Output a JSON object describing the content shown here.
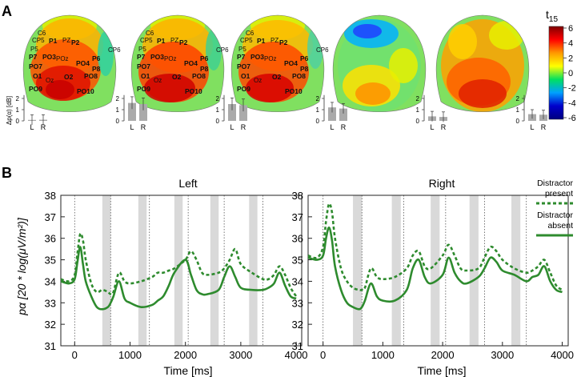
{
  "panel_a": {
    "label": "A",
    "colorbar": {
      "title": "t",
      "title_sub": "15",
      "ticks": [
        "6",
        "4",
        "2",
        "0",
        "-2",
        "-4",
        "-6"
      ],
      "values": [
        6,
        4,
        2,
        0,
        -2,
        -4,
        -6
      ],
      "colors": [
        "#7f0000",
        "#ff0000",
        "#ff9900",
        "#ffff00",
        "#00e060",
        "#00a0ff",
        "#0000cc",
        "#00007f"
      ]
    },
    "electrodes": [
      "C6",
      "CP5",
      "P1",
      "PZ",
      "P2",
      "CP6",
      "P5",
      "P7",
      "PO3",
      "POz",
      "PO4",
      "P6",
      "P8",
      "PO7",
      "O1",
      "Oz",
      "O2",
      "PO8",
      "PO9",
      "PO10"
    ],
    "bar_ylabel": "Δp(α) [dB]",
    "bar_yticks": [
      "2",
      "1",
      "0"
    ],
    "bar_categories": [
      "L",
      "R"
    ],
    "bar_values": [
      {
        "L": 0.0,
        "R": 0.1
      },
      {
        "L": 1.6,
        "R": 1.5
      },
      {
        "L": 1.5,
        "R": 1.4
      },
      {
        "L": 1.2,
        "R": 1.1
      },
      {
        "L": 0.4,
        "R": 0.35
      },
      {
        "L": 0.6,
        "R": 0.55
      }
    ],
    "bar_errors": [
      0.45,
      0.55,
      0.55,
      0.45,
      0.45,
      0.4
    ]
  },
  "panel_b": {
    "label": "B",
    "legend": {
      "present_label_1": "Distractor",
      "present_label_2": "present",
      "absent_label_1": "Distractor",
      "absent_label_2": "absent"
    }
  },
  "chart_data": [
    {
      "type": "line",
      "title": "Left",
      "xlabel": "Time [ms]",
      "ylabel": "pα [20 * log(μV/m²)]",
      "xlim": [
        -250,
        4100
      ],
      "ylim": [
        31,
        38
      ],
      "xticks": [
        0,
        1000,
        2000,
        3000,
        4000
      ],
      "yticks": [
        31,
        32,
        33,
        34,
        35,
        36,
        37,
        38
      ],
      "shaded_bands": [
        [
          500,
          650
        ],
        [
          1150,
          1300
        ],
        [
          1800,
          1950
        ],
        [
          2450,
          2600
        ],
        [
          3150,
          3300
        ]
      ],
      "dotted_verticals": [
        0,
        650,
        1350,
        2050,
        2700,
        3400
      ],
      "x": [
        -250,
        -100,
        0,
        50,
        100,
        150,
        200,
        300,
        400,
        500,
        600,
        650,
        700,
        800,
        900,
        1000,
        1200,
        1400,
        1500,
        1600,
        1700,
        1800,
        2000,
        2100,
        2200,
        2300,
        2400,
        2600,
        2700,
        2800,
        2900,
        3000,
        3200,
        3400,
        3500,
        3600,
        3700,
        3800,
        3900,
        4000
      ],
      "series": [
        {
          "name": "Distractor present",
          "values": [
            34.1,
            34.0,
            34.3,
            35.3,
            36.2,
            35.9,
            35.0,
            33.9,
            33.5,
            33.6,
            33.5,
            33.4,
            33.5,
            34.4,
            34.0,
            33.9,
            34.0,
            34.2,
            34.4,
            34.4,
            34.5,
            34.6,
            35.0,
            35.4,
            35.0,
            34.4,
            34.3,
            34.4,
            34.6,
            35.0,
            35.5,
            34.8,
            34.4,
            34.1,
            34.1,
            34.3,
            34.7,
            34.3,
            33.7,
            33.3
          ]
        },
        {
          "name": "Distractor absent",
          "values": [
            34.0,
            33.9,
            34.1,
            34.9,
            35.6,
            34.8,
            34.0,
            33.3,
            32.8,
            32.7,
            32.8,
            33.0,
            33.3,
            34.0,
            33.2,
            33.0,
            32.8,
            32.9,
            33.1,
            33.3,
            33.8,
            34.4,
            35.0,
            34.3,
            33.6,
            33.4,
            33.4,
            33.6,
            34.2,
            34.7,
            34.2,
            33.7,
            33.6,
            33.6,
            33.7,
            33.9,
            34.4,
            33.8,
            33.3,
            33.2
          ]
        }
      ]
    },
    {
      "type": "line",
      "title": "Right",
      "xlabel": "Time [ms]",
      "ylabel": "",
      "xlim": [
        -250,
        4100
      ],
      "ylim": [
        31,
        38
      ],
      "xticks": [
        0,
        1000,
        2000,
        3000,
        4000
      ],
      "yticks": [
        31,
        32,
        33,
        34,
        35,
        36,
        37,
        38
      ],
      "shaded_bands": [
        [
          500,
          650
        ],
        [
          1150,
          1300
        ],
        [
          1800,
          1950
        ],
        [
          2450,
          2600
        ],
        [
          3150,
          3300
        ]
      ],
      "dotted_verticals": [
        0,
        650,
        1350,
        2050,
        2700,
        3400
      ],
      "x": [
        -250,
        -100,
        0,
        50,
        100,
        150,
        200,
        300,
        400,
        500,
        600,
        650,
        700,
        800,
        900,
        1000,
        1200,
        1400,
        1500,
        1600,
        1700,
        1800,
        2000,
        2100,
        2200,
        2300,
        2400,
        2600,
        2700,
        2800,
        2900,
        3000,
        3200,
        3400,
        3500,
        3600,
        3700,
        3800,
        3900,
        4000
      ],
      "series": [
        {
          "name": "Distractor present",
          "values": [
            35.2,
            35.1,
            35.6,
            36.8,
            37.6,
            37.2,
            36.0,
            34.6,
            34.0,
            33.7,
            33.6,
            33.6,
            33.7,
            34.6,
            34.2,
            34.1,
            34.2,
            34.6,
            35.2,
            35.4,
            34.7,
            34.6,
            35.2,
            35.7,
            35.2,
            34.6,
            34.5,
            34.6,
            35.1,
            35.6,
            35.4,
            35.0,
            34.6,
            34.4,
            34.5,
            34.7,
            35.0,
            34.4,
            33.8,
            33.6
          ]
        },
        {
          "name": "Distractor absent",
          "values": [
            35.1,
            35.0,
            35.2,
            36.0,
            36.5,
            35.9,
            34.7,
            33.6,
            33.0,
            32.8,
            32.7,
            32.8,
            33.1,
            33.9,
            33.3,
            33.1,
            33.1,
            33.6,
            34.6,
            35.0,
            34.2,
            33.9,
            34.3,
            35.1,
            34.4,
            34.0,
            33.9,
            34.2,
            34.6,
            35.1,
            34.9,
            34.5,
            34.3,
            34.0,
            34.2,
            34.3,
            34.7,
            34.0,
            33.6,
            33.5
          ]
        }
      ]
    }
  ]
}
